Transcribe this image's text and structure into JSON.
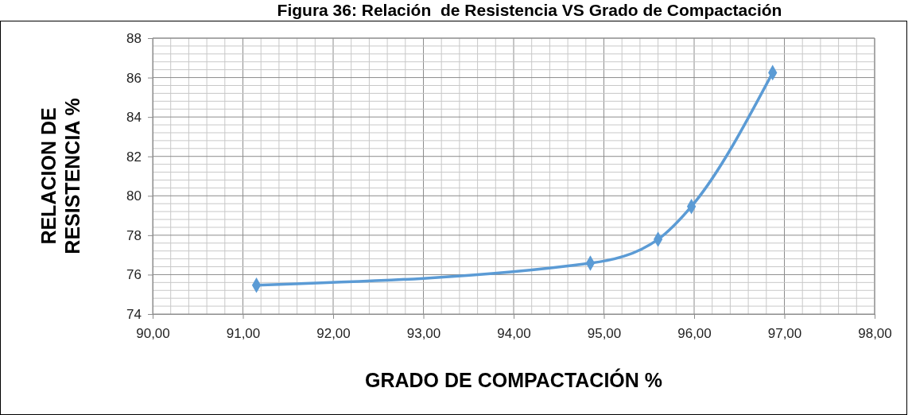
{
  "chart_data": {
    "type": "line",
    "title": "Figura 36: Relación  de Resistencia VS Grado de Compactación",
    "xlabel": "GRADO DE COMPACTACIÓN %",
    "ylabel": "RELACION DE\nRESISTENCIA %",
    "x": [
      91.15,
      94.85,
      95.6,
      95.97,
      96.87
    ],
    "series": [
      {
        "color": "#5b9bd5",
        "values": [
          75.46,
          76.58,
          77.79,
          79.46,
          86.25
        ]
      }
    ],
    "xlim": [
      90,
      98
    ],
    "xticks": [
      {
        "value": 90,
        "label": "90,00"
      },
      {
        "value": 91,
        "label": "91,00"
      },
      {
        "value": 92,
        "label": "92,00"
      },
      {
        "value": 93,
        "label": "93,00"
      },
      {
        "value": 94,
        "label": "94,00"
      },
      {
        "value": 95,
        "label": "95,00"
      },
      {
        "value": 96,
        "label": "96,00"
      },
      {
        "value": 97,
        "label": "97,00"
      },
      {
        "value": 98,
        "label": "98,00"
      }
    ],
    "ylim": [
      74,
      88
    ],
    "yticks": [
      74,
      76,
      78,
      80,
      82,
      84,
      86,
      88
    ],
    "grid": true,
    "marker": "diamond",
    "line_style": "solid"
  }
}
